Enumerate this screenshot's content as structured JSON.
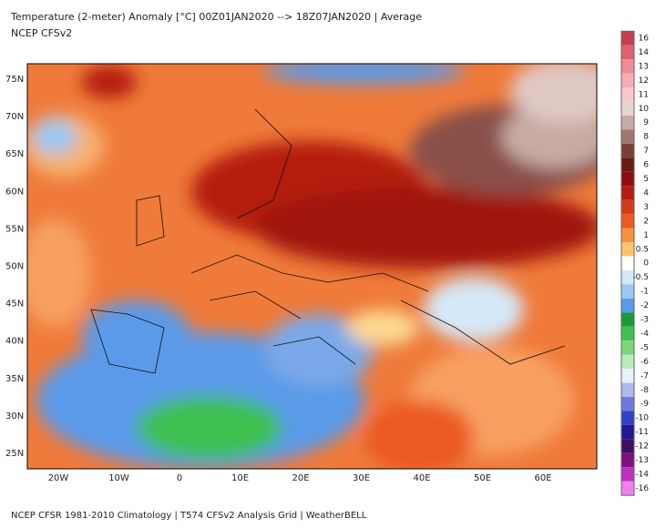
{
  "header": {
    "title": "Temperature (2-meter) Anomaly  [°C] 00Z01JAN2020 --> 18Z07JAN2020 | Average",
    "subtitle": "NCEP  CFSv2"
  },
  "map": {
    "lat_labels": [
      "75N",
      "70N",
      "65N",
      "60N",
      "55N",
      "50N",
      "45N",
      "40N",
      "35N",
      "30N",
      "25N"
    ],
    "lon_labels": [
      "20W",
      "10W",
      "0",
      "10E",
      "20E",
      "30E",
      "40E",
      "50E",
      "60E"
    ]
  },
  "colorbar": {
    "levels": [
      {
        "label": "16",
        "color": "#c83c50"
      },
      {
        "label": "14",
        "color": "#e06070"
      },
      {
        "label": "13",
        "color": "#f08a96"
      },
      {
        "label": "12",
        "color": "#f5aab4"
      },
      {
        "label": "11",
        "color": "#f8c8cc"
      },
      {
        "label": "10",
        "color": "#e8d4d0"
      },
      {
        "label": "9",
        "color": "#c8aaa4"
      },
      {
        "label": "8",
        "color": "#a07872"
      },
      {
        "label": "7",
        "color": "#7a4038"
      },
      {
        "label": "6",
        "color": "#6a1a10"
      },
      {
        "label": "5",
        "color": "#900c0c"
      },
      {
        "label": "4",
        "color": "#b41e10"
      },
      {
        "label": "3",
        "color": "#d43c18"
      },
      {
        "label": "2",
        "color": "#eb5a22"
      },
      {
        "label": "1",
        "color": "#f7913a"
      },
      {
        "label": "0.5",
        "color": "#fbc470"
      },
      {
        "label": "0",
        "color": "#ffffff"
      },
      {
        "label": "-0.5",
        "color": "#d4e8f8"
      },
      {
        "label": "-1",
        "color": "#9cc8f0"
      },
      {
        "label": "-2",
        "color": "#5a9ae8"
      },
      {
        "label": "-3",
        "color": "#1a9a3a"
      },
      {
        "label": "-4",
        "color": "#3ec050"
      },
      {
        "label": "-5",
        "color": "#7ad87a"
      },
      {
        "label": "-6",
        "color": "#b8ecb8"
      },
      {
        "label": "-7",
        "color": "#e8f0ff"
      },
      {
        "label": "-8",
        "color": "#b0b8f0"
      },
      {
        "label": "-9",
        "color": "#7078e0"
      },
      {
        "label": "-10",
        "color": "#3040c8"
      },
      {
        "label": "-11",
        "color": "#201890"
      },
      {
        "label": "-12",
        "color": "#401060"
      },
      {
        "label": "-13",
        "color": "#801080"
      },
      {
        "label": "-14",
        "color": "#c030c0"
      },
      {
        "label": "-16",
        "color": "#f080f0"
      }
    ]
  },
  "footer": "NCEP CFSR 1981-2010 Climatology | T574 CFSv2 Analysis Grid | WeatherBELL"
}
